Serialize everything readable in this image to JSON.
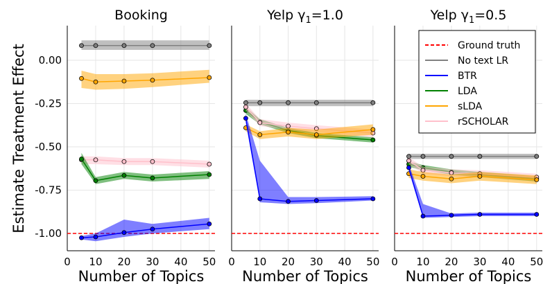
{
  "figure": {
    "ylabel": "Estimate Treatment Effect",
    "xlabel": "Number of Topics"
  },
  "legend": {
    "placement": "top-right of third panel",
    "entries": [
      {
        "label": "Ground truth",
        "color": "#ff0000",
        "style": "dashed"
      },
      {
        "label": "No text LR",
        "color": "#808080",
        "style": "solid"
      },
      {
        "label": "BTR",
        "color": "#0000ff",
        "style": "solid"
      },
      {
        "label": "LDA",
        "color": "#008000",
        "style": "solid"
      },
      {
        "label": "sLDA",
        "color": "#ffa500",
        "style": "solid"
      },
      {
        "label": "rSCHOLAR",
        "color": "#ffc0cb",
        "style": "solid"
      }
    ]
  },
  "chart_data": [
    {
      "type": "line",
      "title": "Booking",
      "xlabel": "Number of Topics",
      "ylabel": "Estimate Treatment Effect",
      "xlim": [
        0,
        52
      ],
      "ylim": [
        -1.1,
        0.2
      ],
      "xticks": [
        "0",
        "10",
        "20",
        "30",
        "40",
        "50"
      ],
      "yticks": [
        "0.00",
        "-0.25",
        "-0.50",
        "-0.75",
        "-1.00"
      ],
      "grid": true,
      "ground_truth": -1.0,
      "x": [
        5,
        10,
        20,
        30,
        50
      ],
      "series": [
        {
          "name": "No text LR",
          "color": "#808080",
          "values": [
            0.085,
            0.085,
            0.085,
            0.085,
            0.085
          ],
          "lower": [
            0.06,
            0.06,
            0.06,
            0.06,
            0.06
          ],
          "upper": [
            0.115,
            0.115,
            0.115,
            0.115,
            0.115
          ]
        },
        {
          "name": "sLDA",
          "color": "#ffa500",
          "values": [
            -0.105,
            -0.125,
            -0.12,
            -0.115,
            -0.1
          ],
          "lower": [
            -0.16,
            -0.17,
            -0.165,
            -0.155,
            -0.13
          ],
          "upper": [
            -0.06,
            -0.08,
            -0.08,
            -0.075,
            -0.055
          ]
        },
        {
          "name": "rSCHOLAR",
          "color": "#ffc0cb",
          "values": [
            -0.575,
            -0.575,
            -0.585,
            -0.585,
            -0.6
          ],
          "lower": [
            -0.6,
            -0.6,
            -0.605,
            -0.605,
            -0.62
          ],
          "upper": [
            -0.555,
            -0.555,
            -0.565,
            -0.565,
            -0.58
          ]
        },
        {
          "name": "LDA",
          "color": "#008000",
          "values": [
            -0.57,
            -0.695,
            -0.665,
            -0.68,
            -0.66
          ],
          "lower": [
            -0.6,
            -0.715,
            -0.685,
            -0.7,
            -0.685
          ],
          "upper": [
            -0.535,
            -0.675,
            -0.645,
            -0.66,
            -0.64
          ]
        },
        {
          "name": "BTR",
          "color": "#0000ff",
          "values": [
            -1.025,
            -1.02,
            -0.995,
            -0.975,
            -0.945
          ],
          "lower": [
            -1.035,
            -1.045,
            -1.02,
            -1.0,
            -0.975
          ],
          "upper": [
            -1.015,
            -1.0,
            -0.92,
            -0.945,
            -0.91
          ]
        }
      ]
    },
    {
      "type": "line",
      "title": "Yelp γ1=1.0",
      "xlabel": "Number of Topics",
      "xlim": [
        0,
        52
      ],
      "ylim": [
        -1.1,
        0.2
      ],
      "xticks": [
        "0",
        "10",
        "20",
        "30",
        "40",
        "50"
      ],
      "grid": true,
      "ground_truth": -1.0,
      "x": [
        5,
        10,
        20,
        30,
        50
      ],
      "series": [
        {
          "name": "No text LR",
          "color": "#808080",
          "values": [
            -0.245,
            -0.245,
            -0.245,
            -0.245,
            -0.245
          ],
          "lower": [
            -0.265,
            -0.265,
            -0.265,
            -0.265,
            -0.265
          ],
          "upper": [
            -0.228,
            -0.228,
            -0.228,
            -0.228,
            -0.228
          ]
        },
        {
          "name": "LDA",
          "color": "#008000",
          "values": [
            -0.29,
            -0.355,
            -0.405,
            -0.435,
            -0.46
          ],
          "lower": [
            -0.31,
            -0.37,
            -0.42,
            -0.45,
            -0.475
          ],
          "upper": [
            -0.27,
            -0.34,
            -0.39,
            -0.42,
            -0.445
          ]
        },
        {
          "name": "rSCHOLAR",
          "color": "#ffc0cb",
          "values": [
            -0.27,
            -0.36,
            -0.38,
            -0.395,
            -0.42
          ],
          "lower": [
            -0.29,
            -0.38,
            -0.4,
            -0.415,
            -0.445
          ],
          "upper": [
            -0.25,
            -0.34,
            -0.36,
            -0.375,
            -0.4
          ]
        },
        {
          "name": "sLDA",
          "color": "#ffa500",
          "values": [
            -0.39,
            -0.43,
            -0.415,
            -0.43,
            -0.4
          ],
          "lower": [
            -0.41,
            -0.455,
            -0.44,
            -0.455,
            -0.43
          ],
          "upper": [
            -0.37,
            -0.41,
            -0.39,
            -0.4,
            -0.37
          ]
        },
        {
          "name": "BTR",
          "color": "#0000ff",
          "values": [
            -0.335,
            -0.8,
            -0.815,
            -0.81,
            -0.8
          ],
          "lower": [
            -0.36,
            -0.82,
            -0.83,
            -0.825,
            -0.81
          ],
          "upper": [
            -0.31,
            -0.58,
            -0.79,
            -0.79,
            -0.785
          ]
        }
      ]
    },
    {
      "type": "line",
      "title": "Yelp γ1=0.5",
      "xlabel": "Number of Topics",
      "xlim": [
        0,
        52
      ],
      "ylim": [
        -1.1,
        0.2
      ],
      "xticks": [
        "0",
        "10",
        "20",
        "30",
        "40",
        "50"
      ],
      "grid": true,
      "ground_truth": -1.0,
      "x": [
        5,
        10,
        20,
        30,
        50
      ],
      "series": [
        {
          "name": "No text LR",
          "color": "#808080",
          "values": [
            -0.555,
            -0.555,
            -0.555,
            -0.555,
            -0.555
          ],
          "lower": [
            -0.57,
            -0.57,
            -0.57,
            -0.57,
            -0.57
          ],
          "upper": [
            -0.54,
            -0.54,
            -0.54,
            -0.54,
            -0.54
          ]
        },
        {
          "name": "LDA",
          "color": "#008000",
          "values": [
            -0.6,
            -0.62,
            -0.645,
            -0.66,
            -0.685
          ],
          "lower": [
            -0.615,
            -0.635,
            -0.66,
            -0.675,
            -0.7
          ],
          "upper": [
            -0.585,
            -0.605,
            -0.63,
            -0.645,
            -0.67
          ]
        },
        {
          "name": "rSCHOLAR",
          "color": "#ffc0cb",
          "values": [
            -0.58,
            -0.635,
            -0.65,
            -0.655,
            -0.675
          ],
          "lower": [
            -0.6,
            -0.655,
            -0.67,
            -0.675,
            -0.695
          ],
          "upper": [
            -0.56,
            -0.615,
            -0.63,
            -0.635,
            -0.655
          ]
        },
        {
          "name": "sLDA",
          "color": "#ffa500",
          "values": [
            -0.655,
            -0.67,
            -0.685,
            -0.67,
            -0.69
          ],
          "lower": [
            -0.68,
            -0.695,
            -0.71,
            -0.695,
            -0.715
          ],
          "upper": [
            -0.63,
            -0.645,
            -0.66,
            -0.645,
            -0.665
          ]
        },
        {
          "name": "BTR",
          "color": "#0000ff",
          "values": [
            -0.62,
            -0.9,
            -0.895,
            -0.89,
            -0.89
          ],
          "lower": [
            -0.64,
            -0.91,
            -0.905,
            -0.9,
            -0.9
          ],
          "upper": [
            -0.6,
            -0.83,
            -0.885,
            -0.88,
            -0.88
          ]
        }
      ]
    }
  ]
}
